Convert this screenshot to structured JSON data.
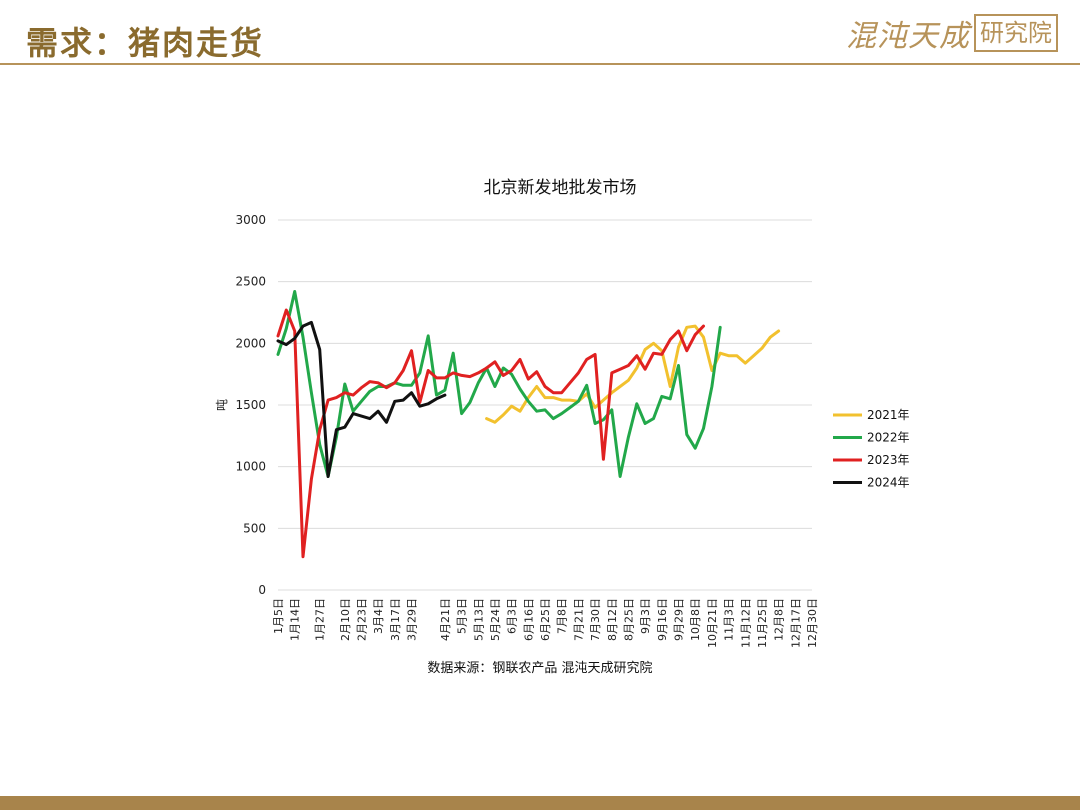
{
  "header": {
    "title": "需求：猪肉走货",
    "logo_text": "混沌天成",
    "logo_box": "研究院"
  },
  "colors": {
    "accent": "#b7935a",
    "title": "#8a6b2e",
    "footer": "#a8844b"
  },
  "source": "数据来源：钢联农产品 混沌天成研究院",
  "chart_data": {
    "type": "line",
    "title": "北京新发地批发市场",
    "ylabel": "吨",
    "xlabel": "",
    "ylim": [
      0,
      3000
    ],
    "yticks": [
      0,
      500,
      1000,
      1500,
      2000,
      2500,
      3000
    ],
    "grid": true,
    "legend_position": "right",
    "x": [
      "1月5日",
      "1月10日",
      "1月14日",
      "1月19日",
      "1月22日",
      "1月27日",
      "1月31日",
      "2月5日",
      "2月10日",
      "2月14日",
      "2月23日",
      "2月27日",
      "3月4日",
      "3月9日",
      "3月17日",
      "3月22日",
      "3月29日",
      "4月3日",
      "4月10日",
      "4月14日",
      "4月21日",
      "4月26日",
      "5月3日",
      "5月8日",
      "5月13日",
      "5月18日",
      "5月24日",
      "5月29日",
      "6月3日",
      "6月9日",
      "6月16日",
      "6月21日",
      "6月25日",
      "6月30日",
      "7月8日",
      "7月14日",
      "7月21日",
      "7月26日",
      "7月30日",
      "8月5日",
      "8月12日",
      "8月19日",
      "8月25日",
      "8月31日",
      "9月3日",
      "9月10日",
      "9月16日",
      "9月23日",
      "9月29日",
      "10月4日",
      "10月8日",
      "10月14日",
      "10月21日",
      "10月26日",
      "11月3日",
      "11月8日",
      "11月12日",
      "11月19日",
      "11月25日",
      "12月1日",
      "12月8日",
      "12月12日",
      "12月17日",
      "12月23日",
      "12月30日"
    ],
    "xtick_labels": [
      "1月5日",
      "1月14日",
      "1月27日",
      "2月10日",
      "2月23日",
      "3月4日",
      "3月17日",
      "3月29日",
      "4月21日",
      "5月3日",
      "5月13日",
      "5月24日",
      "6月3日",
      "6月16日",
      "6月25日",
      "7月8日",
      "7月21日",
      "7月30日",
      "8月12日",
      "8月25日",
      "9月3日",
      "9月16日",
      "9月29日",
      "10月8日",
      "10月21日",
      "11月3日",
      "11月12日",
      "11月25日",
      "12月8日",
      "12月17日",
      "12月30日"
    ],
    "series": [
      {
        "name": "2021年",
        "color": "#f2c12e",
        "values": [
          null,
          null,
          null,
          null,
          null,
          null,
          null,
          null,
          null,
          null,
          null,
          null,
          null,
          null,
          null,
          null,
          null,
          null,
          null,
          null,
          null,
          null,
          null,
          null,
          null,
          1390,
          1360,
          1420,
          1490,
          1450,
          1560,
          1650,
          1560,
          1560,
          1540,
          1540,
          1530,
          1590,
          1480,
          1540,
          1600,
          1650,
          1700,
          1800,
          1950,
          2000,
          1940,
          1650,
          1970,
          2130,
          2140,
          2050,
          1780,
          1920,
          1900,
          1900,
          1840,
          1900,
          1960,
          2050,
          2100,
          null,
          null,
          null,
          null
        ]
      },
      {
        "name": "2022年",
        "color": "#22a84a",
        "values": [
          1910,
          2120,
          2420,
          2050,
          1600,
          1180,
          920,
          1240,
          1670,
          1450,
          1530,
          1610,
          1650,
          1650,
          1680,
          1660,
          1660,
          1760,
          2060,
          1580,
          1620,
          1920,
          1430,
          1520,
          1680,
          1800,
          1650,
          1800,
          1750,
          1630,
          1530,
          1450,
          1460,
          1390,
          1430,
          1480,
          1530,
          1660,
          1350,
          1380,
          1460,
          920,
          1240,
          1510,
          1350,
          1390,
          1570,
          1550,
          1820,
          1260,
          1150,
          1310,
          1650,
          2130,
          null,
          null,
          null,
          null,
          null,
          null,
          null,
          null,
          null,
          null,
          null
        ]
      },
      {
        "name": "2023年",
        "color": "#e02121",
        "values": [
          2060,
          2270,
          2100,
          270,
          900,
          1300,
          1540,
          1560,
          1600,
          1580,
          1640,
          1690,
          1680,
          1640,
          1680,
          1780,
          1940,
          1520,
          1780,
          1720,
          1720,
          1760,
          1740,
          1730,
          1760,
          1800,
          1850,
          1740,
          1780,
          1870,
          1710,
          1770,
          1650,
          1600,
          1600,
          1680,
          1760,
          1870,
          1910,
          1060,
          1760,
          1790,
          1820,
          1900,
          1790,
          1920,
          1910,
          2030,
          2100,
          1940,
          2070,
          2140,
          null,
          null,
          null,
          null,
          null,
          null,
          null,
          null,
          null,
          null,
          null,
          null,
          null
        ]
      },
      {
        "name": "2024年",
        "color": "#111111",
        "values": [
          2020,
          1990,
          2040,
          2140,
          2170,
          1950,
          920,
          1300,
          1320,
          1430,
          1410,
          1390,
          1450,
          1360,
          1530,
          1540,
          1600,
          1490,
          1510,
          1550,
          1580,
          null,
          null,
          null,
          null,
          null,
          null,
          null,
          null,
          null,
          null,
          null,
          null,
          null,
          null,
          null,
          null,
          null,
          null,
          null,
          null,
          null,
          null,
          null,
          null,
          null,
          null,
          null,
          null,
          null,
          null,
          null,
          null,
          null,
          null,
          null,
          null,
          null,
          null,
          null,
          null,
          null,
          null,
          null,
          null
        ]
      }
    ]
  }
}
